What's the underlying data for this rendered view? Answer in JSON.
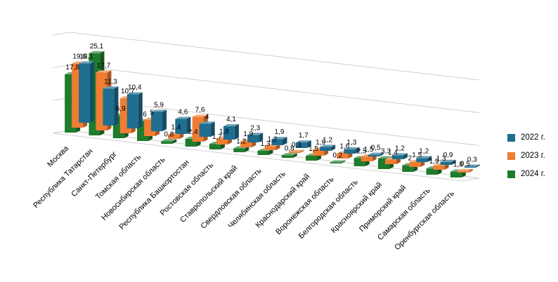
{
  "chart_data": {
    "type": "bar",
    "subtype": "3d-clustered-column",
    "categories": [
      "Москва",
      "Республика Татарстан",
      "Санкт-Петербург",
      "Томская область",
      "Новосибирская область",
      "Республика Башкортостан",
      "Ростовская область",
      "Ставропольский край",
      "Свердловская область",
      "Челябинская область",
      "Краснодарский край",
      "Воронежская область",
      "Белгородская область",
      "Красноярский край",
      "Приморский край",
      "Самарская область",
      "Оренбургская область"
    ],
    "series": [
      {
        "name": "2022 г.",
        "color": "#1f6d8f",
        "values": [
          18.1,
          11.3,
          10.4,
          5.9,
          4.6,
          4.0,
          4.1,
          2.3,
          1.9,
          1.7,
          1.2,
          1.3,
          0.5,
          1.2,
          1.2,
          0.9,
          0.3
        ],
        "labels": [
          "18,1",
          "11,3",
          "10,4",
          "5,9",
          "4,6",
          "4",
          "4,1",
          "2,3",
          "1,9",
          "1,7",
          "1,2",
          "1,3",
          "0,5",
          "1,2",
          "1,2",
          "0,9",
          "0,3"
        ]
      },
      {
        "name": "2023 г.",
        "color": "#f07d33",
        "values": [
          19.6,
          17.7,
          10.7,
          5.0,
          1.4,
          7.6,
          1.8,
          1.9,
          1.2,
          0.3,
          1.9,
          1.6,
          1.5,
          1.4,
          1.5,
          1.3,
          0.5
        ],
        "labels": [
          "19,6",
          "17,7",
          "10,7",
          "5",
          "1,4",
          "7,6",
          "1,8",
          "1,9",
          "1,2",
          "0,3",
          "1,9",
          "1,6",
          "1,5",
          "1,4",
          "1,5",
          "1,3",
          "0,5"
        ]
      },
      {
        "name": "2024 г.",
        "color": "#1e7c2c",
        "values": [
          17.8,
          25.1,
          6.9,
          6.0,
          0.8,
          2.4,
          1.7,
          1.2,
          1.3,
          0.8,
          1.5,
          0.2,
          2.5,
          3.3,
          2.0,
          1.9,
          1.8
        ],
        "labels": [
          "17,8",
          "25,1",
          "6,9",
          "6",
          "0,8",
          "2,4",
          "1,7",
          "1,2",
          "1,3",
          "0,8",
          "1,5",
          "0,2",
          "2,5",
          "3,3",
          "2",
          "1,9",
          "1,8"
        ]
      }
    ],
    "ylim": [
      0,
      30
    ],
    "grid": true,
    "legend_position": "right"
  }
}
